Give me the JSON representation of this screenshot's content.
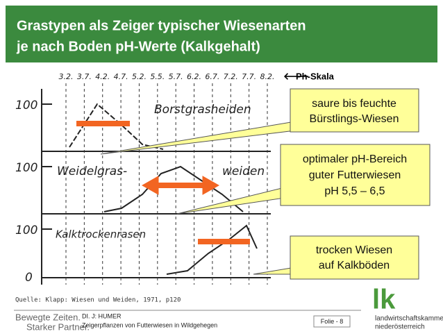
{
  "header": {
    "title_lines": [
      "Grastypen als Zeiger typischer Wiesenarten",
      "je nach Boden pH-Werte (Kalkgehalt)"
    ]
  },
  "figure": {
    "ph_labels": [
      "3.2.",
      "3.7.",
      "4.2.",
      "4.7.",
      "5.2.",
      "5.5.",
      "5.7.",
      "6.2.",
      "6.7.",
      "7.2.",
      "7.7.",
      "8.2."
    ],
    "ph_scale_label": "Ph-Skala",
    "panels": [
      {
        "axis_top": "100",
        "label_lines": [
          "Borstgrasheiden"
        ]
      },
      {
        "axis_top": "100",
        "label_lines": [
          "Weidelgras-",
          "weiden"
        ]
      },
      {
        "axis_top": "100",
        "axis_bottom": "0",
        "label_lines": [
          "Kalktrockenrasen"
        ]
      }
    ],
    "source": "Quelle: Klapp: Wiesen und Weiden, 1971, p120"
  },
  "callouts": [
    {
      "lines": [
        "saure bis feuchte",
        "Bürstlings-Wiesen"
      ]
    },
    {
      "lines": [
        "optimaler pH-Bereich",
        "guter Futterwiesen",
        "pH 5,5 – 6,5"
      ]
    },
    {
      "lines": [
        "trocken Wiesen",
        "auf Kalkböden"
      ]
    }
  ],
  "footer": {
    "slogan_lines": [
      "Bewegte Zeiten.",
      "Starker Partner."
    ],
    "author_lines": [
      "DI. J: HUMER",
      "Zeigerpflanzen von Futterwiesen in Wildgehegen"
    ],
    "slide": "Folie - 8",
    "logo": {
      "mark": "lk",
      "lines": [
        "landwirtschaftskammer",
        "niederösterreich"
      ]
    }
  }
}
